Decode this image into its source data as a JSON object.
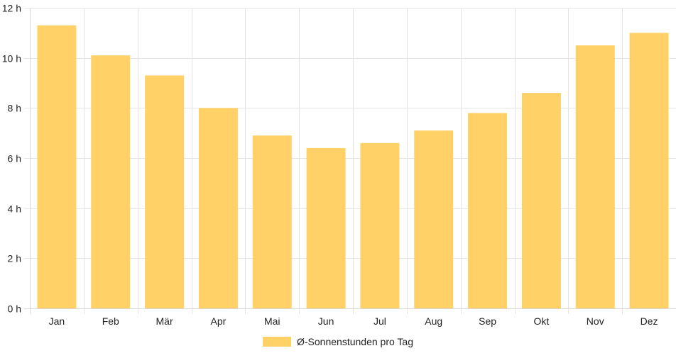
{
  "chart_data": {
    "type": "bar",
    "categories": [
      "Jan",
      "Feb",
      "Mär",
      "Apr",
      "Mai",
      "Jun",
      "Jul",
      "Aug",
      "Sep",
      "Okt",
      "Nov",
      "Dez"
    ],
    "series": [
      {
        "name": "Ø-Sonnenstunden pro Tag",
        "values": [
          11.3,
          10.1,
          9.3,
          8.0,
          6.9,
          6.4,
          6.6,
          7.1,
          7.8,
          8.6,
          10.5,
          11.0
        ],
        "color": "#ffd166"
      }
    ],
    "y_ticks": [
      "0 h",
      "2 h",
      "4 h",
      "6 h",
      "8 h",
      "10 h",
      "12 h"
    ],
    "ylim": [
      0,
      12
    ],
    "grid": true,
    "legend_position": "bottom"
  }
}
